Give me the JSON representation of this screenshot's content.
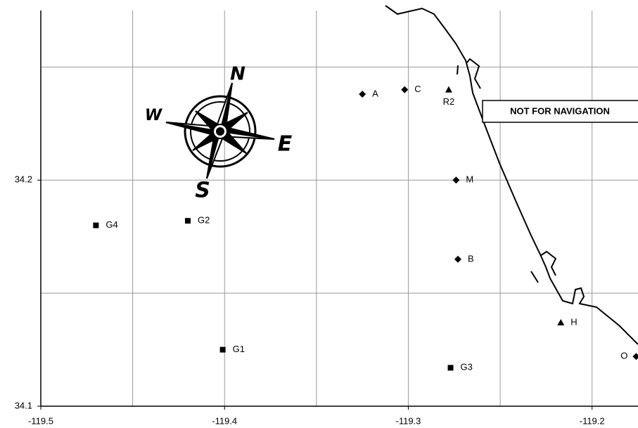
{
  "chart_data": {
    "type": "scatter",
    "annotation": "NOT FOR NAVIGATION",
    "compass_labels": {
      "N": "N",
      "E": "E",
      "S": "S",
      "W": "W"
    },
    "xlim": [
      -119.5,
      -119.175
    ],
    "ylim": [
      34.1,
      34.275
    ],
    "xticks": [
      -119.5,
      -119.4,
      -119.3,
      -119.2
    ],
    "yticks": [
      34.1,
      34.2
    ],
    "x_grid": [
      -119.5,
      -119.45,
      -119.4,
      -119.35,
      -119.3,
      -119.25,
      -119.2
    ],
    "y_grid": [
      34.15,
      34.2,
      34.25
    ],
    "grid": true,
    "series": [
      {
        "marker": "diamond",
        "color": "#000000",
        "labels": [
          "A",
          "C",
          "M",
          "B",
          "O"
        ],
        "x": [
          -119.325,
          -119.302,
          -119.274,
          -119.273,
          -119.176
        ],
        "y": [
          34.238,
          34.24,
          34.2,
          34.165,
          34.122
        ]
      },
      {
        "marker": "triangle",
        "color": "#000000",
        "labels": [
          "R2",
          "H"
        ],
        "x": [
          -119.278,
          -119.217
        ],
        "y": [
          34.24,
          34.137
        ]
      },
      {
        "marker": "square",
        "color": "#000000",
        "labels": [
          "G4",
          "G2",
          "G1",
          "G3"
        ],
        "x": [
          -119.47,
          -119.42,
          -119.401,
          -119.277
        ],
        "y": [
          34.18,
          34.182,
          34.125,
          34.117
        ]
      }
    ]
  }
}
